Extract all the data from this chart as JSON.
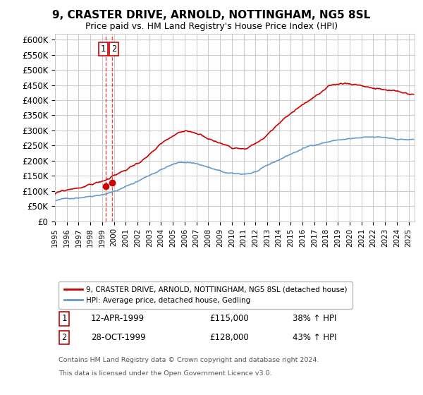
{
  "title": "9, CRASTER DRIVE, ARNOLD, NOTTINGHAM, NG5 8SL",
  "subtitle": "Price paid vs. HM Land Registry's House Price Index (HPI)",
  "ylabel_ticks": [
    "£0",
    "£50K",
    "£100K",
    "£150K",
    "£200K",
    "£250K",
    "£300K",
    "£350K",
    "£400K",
    "£450K",
    "£500K",
    "£550K",
    "£600K"
  ],
  "ylim": [
    0,
    620000
  ],
  "yticks": [
    0,
    50000,
    100000,
    150000,
    200000,
    250000,
    300000,
    350000,
    400000,
    450000,
    500000,
    550000,
    600000
  ],
  "xlim_start": 1995.0,
  "xlim_end": 2025.5,
  "red_line_color": "#cc0000",
  "blue_line_color": "#6699cc",
  "grid_color": "#cccccc",
  "background_color": "#ffffff",
  "legend_label_red": "9, CRASTER DRIVE, ARNOLD, NOTTINGHAM, NG5 8SL (detached house)",
  "legend_label_blue": "HPI: Average price, detached house, Gedling",
  "transaction_1_label": "1",
  "transaction_1_date": "12-APR-1999",
  "transaction_1_price": "£115,000",
  "transaction_1_hpi": "38% ↑ HPI",
  "transaction_2_label": "2",
  "transaction_2_date": "28-OCT-1999",
  "transaction_2_price": "£128,000",
  "transaction_2_hpi": "43% ↑ HPI",
  "footnote1": "Contains HM Land Registry data © Crown copyright and database right 2024.",
  "footnote2": "This data is licensed under the Open Government Licence v3.0.",
  "sale1_x": 1999.28,
  "sale1_y": 115000,
  "sale2_x": 1999.83,
  "sale2_y": 128000,
  "marker_color": "#cc0000",
  "dashed_line_x": 1999.55
}
